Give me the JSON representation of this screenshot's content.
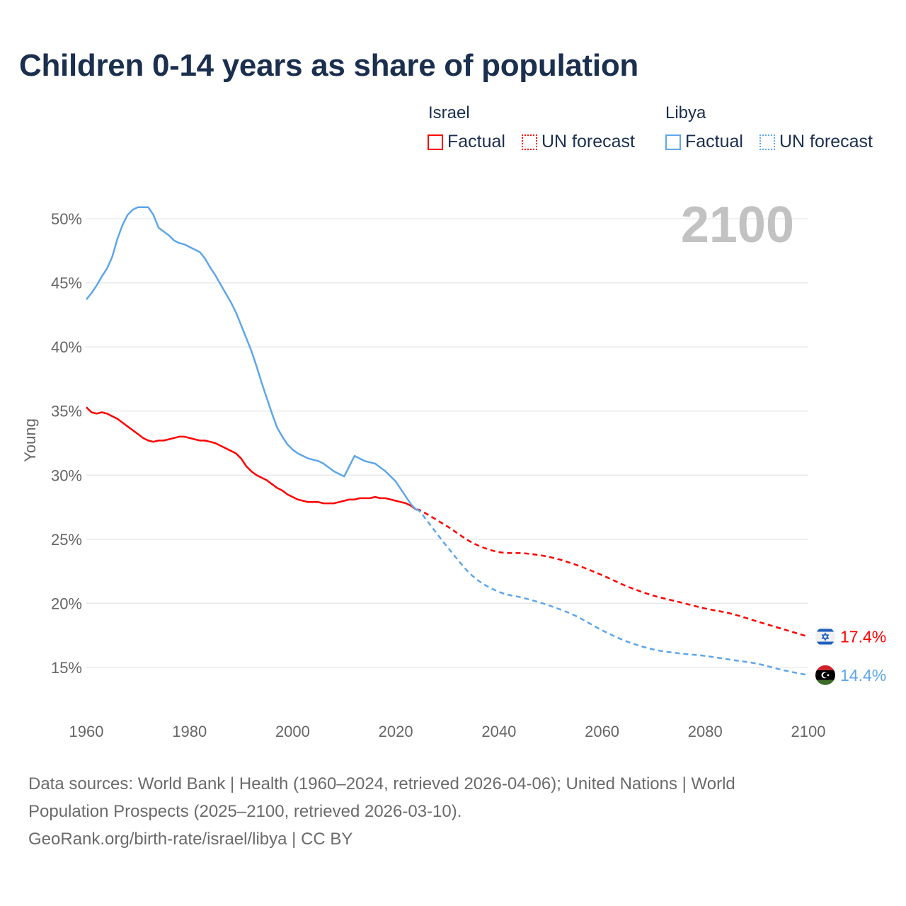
{
  "chart_data": {
    "type": "line",
    "title": "Children 0-14 years as share of population",
    "ylabel": "Young",
    "xlabel": "",
    "xlim": [
      1960,
      2100
    ],
    "ylim": [
      12,
      52
    ],
    "xticks": [
      1960,
      1980,
      2000,
      2020,
      2040,
      2060,
      2080,
      2100
    ],
    "xtick_labels": [
      "1960",
      "1980",
      "2000",
      "2020",
      "2040",
      "2060",
      "2080",
      "2100"
    ],
    "yticks": [
      15,
      20,
      25,
      30,
      35,
      40,
      45,
      50
    ],
    "ytick_labels": [
      "15%",
      "20%",
      "25%",
      "30%",
      "35%",
      "40%",
      "45%",
      "50%"
    ],
    "grid": true,
    "year_overlay": "2100",
    "legend": {
      "groups": [
        {
          "name": "Israel",
          "factual": "Factual",
          "forecast": "UN forecast",
          "color": "#ff0000"
        },
        {
          "name": "Libya",
          "factual": "Factual",
          "forecast": "UN forecast",
          "color": "#5ea6e8"
        }
      ],
      "placement": "top-right"
    },
    "series": [
      {
        "name": "Israel",
        "color": "#ff0000",
        "end_label": "17.4%",
        "flag": "israel-flag",
        "factual": {
          "x_start": 1960,
          "values": [
            35.3,
            34.9,
            34.8,
            34.9,
            34.8,
            34.6,
            34.4,
            34.1,
            33.8,
            33.5,
            33.2,
            32.9,
            32.7,
            32.6,
            32.7,
            32.7,
            32.8,
            32.9,
            33.0,
            33.0,
            32.9,
            32.8,
            32.7,
            32.7,
            32.6,
            32.5,
            32.3,
            32.1,
            31.9,
            31.7,
            31.3,
            30.7,
            30.3,
            30.0,
            29.8,
            29.6,
            29.3,
            29.0,
            28.8,
            28.5,
            28.3,
            28.1,
            28.0,
            27.9,
            27.9,
            27.9,
            27.8,
            27.8,
            27.8,
            27.9,
            28.0,
            28.1,
            28.1,
            28.2,
            28.2,
            28.2,
            28.3,
            28.2,
            28.2,
            28.1,
            28.0,
            27.9,
            27.8,
            27.6,
            27.3
          ]
        },
        "forecast": {
          "x": [
            2024,
            2025,
            2030,
            2035,
            2040,
            2045,
            2050,
            2055,
            2060,
            2065,
            2070,
            2075,
            2080,
            2085,
            2090,
            2095,
            2100
          ],
          "values": [
            27.3,
            27.2,
            26.0,
            24.7,
            24.0,
            23.9,
            23.6,
            23.0,
            22.2,
            21.3,
            20.6,
            20.1,
            19.6,
            19.2,
            18.6,
            18.0,
            17.4
          ]
        }
      },
      {
        "name": "Libya",
        "color": "#5ea6e8",
        "end_label": "14.4%",
        "flag": "libya-flag",
        "factual": {
          "x_start": 1960,
          "values": [
            43.7,
            44.2,
            44.8,
            45.5,
            46.1,
            47.0,
            48.4,
            49.5,
            50.3,
            50.7,
            50.9,
            50.9,
            50.9,
            50.3,
            49.3,
            49.0,
            48.7,
            48.3,
            48.1,
            48.0,
            47.8,
            47.6,
            47.4,
            46.9,
            46.2,
            45.6,
            44.9,
            44.2,
            43.5,
            42.7,
            41.7,
            40.7,
            39.7,
            38.5,
            37.2,
            36.0,
            34.8,
            33.7,
            33.0,
            32.4,
            32.0,
            31.7,
            31.5,
            31.3,
            31.2,
            31.1,
            30.9,
            30.6,
            30.3,
            30.1,
            29.9,
            30.7,
            31.5,
            31.3,
            31.1,
            31.0,
            30.9,
            30.6,
            30.3,
            29.9,
            29.5,
            28.9,
            28.3,
            27.7,
            27.3
          ]
        },
        "forecast": {
          "x": [
            2024,
            2025,
            2030,
            2035,
            2040,
            2045,
            2050,
            2055,
            2060,
            2065,
            2070,
            2075,
            2080,
            2085,
            2090,
            2095,
            2100
          ],
          "values": [
            27.3,
            27.0,
            24.4,
            22.1,
            20.9,
            20.4,
            19.8,
            19.0,
            17.9,
            17.0,
            16.4,
            16.1,
            15.9,
            15.6,
            15.3,
            14.8,
            14.4
          ]
        }
      }
    ]
  },
  "footer": {
    "line1": "Data sources: World Bank | Health (1960–2024, retrieved 2026-04-06); United Nations | World",
    "line2": "Population Prospects (2025–2100, retrieved 2026-03-10).",
    "line3": "GeoRank.org/birth-rate/israel/libya | CC BY"
  }
}
